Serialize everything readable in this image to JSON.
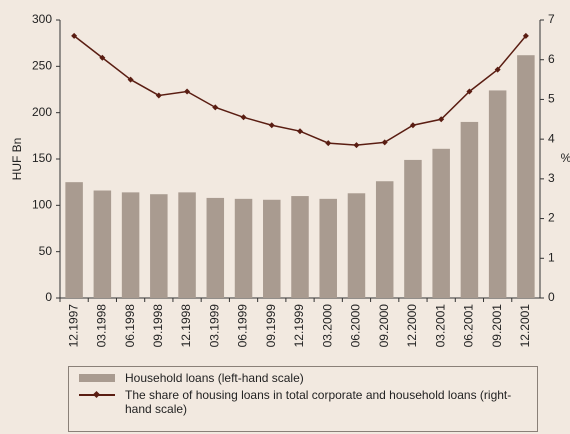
{
  "chart_data": {
    "type": "bar_line",
    "categories": [
      "12.1997",
      "03.1998",
      "06.1998",
      "09.1998",
      "12.1998",
      "03.1999",
      "06.1999",
      "09.1999",
      "12.1999",
      "03.2000",
      "06.2000",
      "09.2000",
      "12.2000",
      "03.2001",
      "06.2001",
      "09.2001",
      "12.2001"
    ],
    "series": [
      {
        "name": "Household loans (left-hand scale)",
        "type": "bar",
        "color": "#a99b90",
        "axis": "y",
        "values": [
          125,
          116,
          114,
          112,
          114,
          108,
          107,
          106,
          110,
          107,
          113,
          126,
          149,
          161,
          190,
          224,
          262
        ]
      },
      {
        "name": "The share of housing loans in total corporate and household loans (right-hand scale)",
        "type": "line",
        "color": "#5a1d12",
        "axis": "y2",
        "values": [
          6.6,
          6.05,
          5.5,
          5.1,
          5.2,
          4.8,
          4.55,
          4.35,
          4.2,
          3.9,
          3.85,
          3.92,
          4.35,
          4.5,
          5.2,
          5.75,
          6.6
        ]
      }
    ],
    "ylabel": "HUF Bn",
    "y2label": "%",
    "ylim": [
      0,
      300
    ],
    "yticks": [
      0,
      50,
      100,
      150,
      200,
      250,
      300
    ],
    "y2lim": [
      0,
      7
    ],
    "y2ticks": [
      0,
      1,
      2,
      3,
      4,
      5,
      6,
      7
    ]
  }
}
